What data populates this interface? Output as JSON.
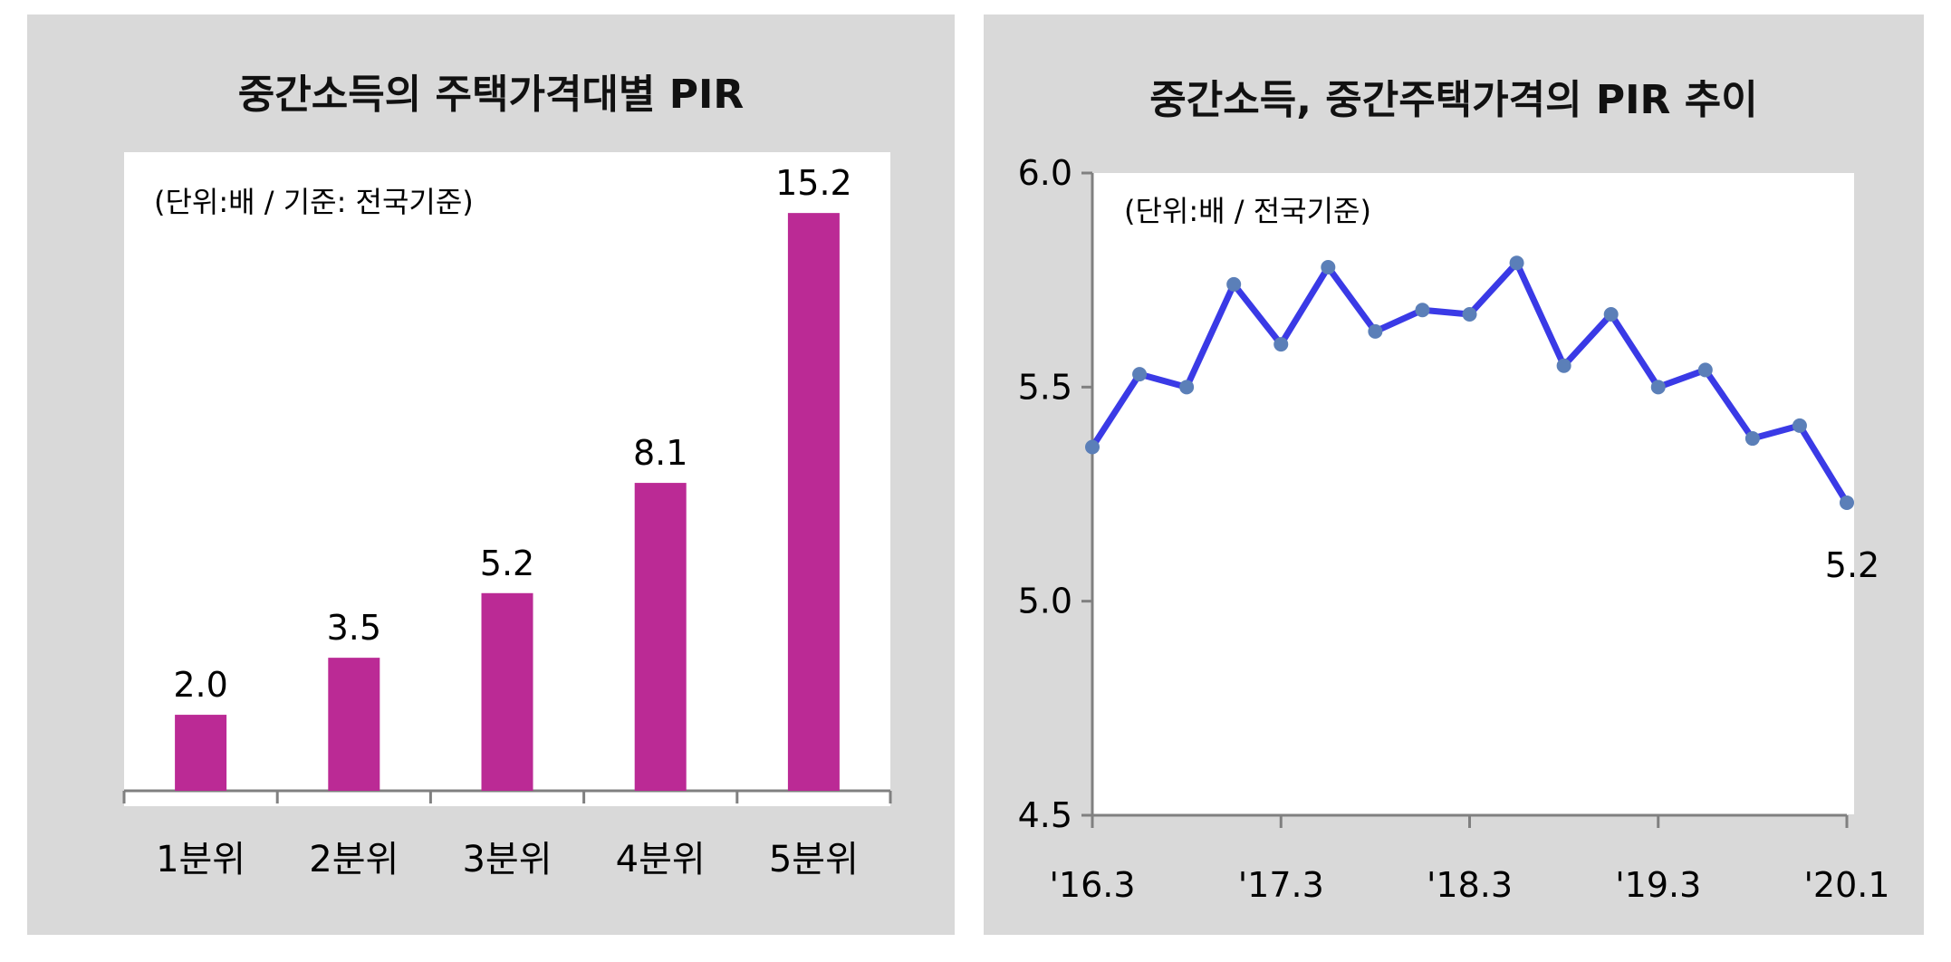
{
  "chart_data": [
    {
      "type": "bar",
      "title": "중간소득의 주택가격대별 PIR",
      "unit_note": "(단위:배 / 기준: 전국기준)",
      "categories": [
        "1분위",
        "2분위",
        "3분위",
        "4분위",
        "5분위"
      ],
      "values": [
        2.0,
        3.5,
        5.2,
        8.1,
        15.2
      ],
      "value_labels": [
        "2.0",
        "3.5",
        "5.2",
        "8.1",
        "15.2"
      ],
      "ylim": [
        0,
        16.8
      ],
      "grid": false,
      "bar_color": "#bb2a95"
    },
    {
      "type": "line",
      "title": "중간소득, 중간주택가격의 PIR 추이",
      "unit_note": "(단위:배 / 전국기준)",
      "x_tick_labels": [
        "'16.3",
        "'17.3",
        "'18.3",
        "'19.3",
        "'20.1"
      ],
      "x_tick_index": [
        0,
        4,
        8,
        12,
        16
      ],
      "y_ticks": [
        4.5,
        5.0,
        5.5,
        6.0
      ],
      "y_tick_labels": [
        "4.5",
        "5.0",
        "5.5",
        "6.0"
      ],
      "ylim": [
        4.5,
        6.0
      ],
      "values": [
        5.36,
        5.53,
        5.5,
        5.74,
        5.6,
        5.78,
        5.63,
        5.68,
        5.67,
        5.79,
        5.55,
        5.67,
        5.5,
        5.54,
        5.38,
        5.41,
        5.23
      ],
      "end_label": "5.2",
      "grid": false,
      "line_color": "#3a3ae6",
      "marker_color": "#5b7fb8"
    }
  ]
}
